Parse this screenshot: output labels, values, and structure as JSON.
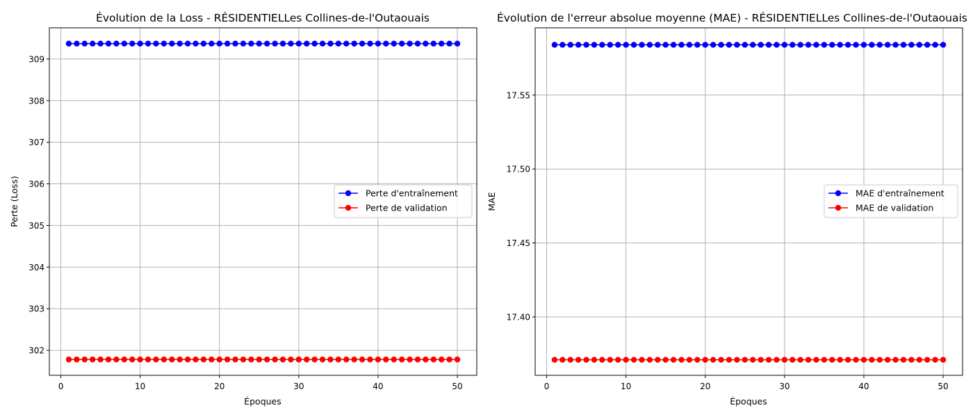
{
  "chart_data": [
    {
      "type": "line",
      "title": "Évolution de la Loss - RÉSIDENTIELLes Collines-de-l'Outaouais",
      "xlabel": "Époques",
      "ylabel": "Perte (Loss)",
      "xlim": [
        -1.45,
        52.45
      ],
      "ylim": [
        301.4,
        309.75
      ],
      "xticks": [
        0,
        10,
        20,
        30,
        40,
        50
      ],
      "yticks": [
        302,
        303,
        304,
        305,
        306,
        307,
        308,
        309
      ],
      "grid": true,
      "legend_position": "center-right",
      "x": [
        1,
        2,
        3,
        4,
        5,
        6,
        7,
        8,
        9,
        10,
        11,
        12,
        13,
        14,
        15,
        16,
        17,
        18,
        19,
        20,
        21,
        22,
        23,
        24,
        25,
        26,
        27,
        28,
        29,
        30,
        31,
        32,
        33,
        34,
        35,
        36,
        37,
        38,
        39,
        40,
        41,
        42,
        43,
        44,
        45,
        46,
        47,
        48,
        49,
        50
      ],
      "series": [
        {
          "name": "Perte d'entraînement",
          "color": "#0000ff",
          "constant": 309.37
        },
        {
          "name": "Perte de validation",
          "color": "#ff0000",
          "constant": 301.78
        }
      ]
    },
    {
      "type": "line",
      "title": "Évolution de l'erreur absolue moyenne (MAE) - RÉSIDENTIELLes Collines-de-l'Outaouais",
      "xlabel": "Époques",
      "ylabel": "MAE",
      "xlim": [
        -1.45,
        52.45
      ],
      "ylim": [
        17.3605,
        17.5955
      ],
      "xticks": [
        0,
        10,
        20,
        30,
        40,
        50
      ],
      "yticks": [
        17.4,
        17.45,
        17.5,
        17.55
      ],
      "ytick_decimals": 2,
      "grid": true,
      "legend_position": "center-right",
      "x": [
        1,
        2,
        3,
        4,
        5,
        6,
        7,
        8,
        9,
        10,
        11,
        12,
        13,
        14,
        15,
        16,
        17,
        18,
        19,
        20,
        21,
        22,
        23,
        24,
        25,
        26,
        27,
        28,
        29,
        30,
        31,
        32,
        33,
        34,
        35,
        36,
        37,
        38,
        39,
        40,
        41,
        42,
        43,
        44,
        45,
        46,
        47,
        48,
        49,
        50
      ],
      "series": [
        {
          "name": "MAE d'entraînement",
          "color": "#0000ff",
          "constant": 17.584
        },
        {
          "name": "MAE de validation",
          "color": "#ff0000",
          "constant": 17.371
        }
      ]
    }
  ]
}
